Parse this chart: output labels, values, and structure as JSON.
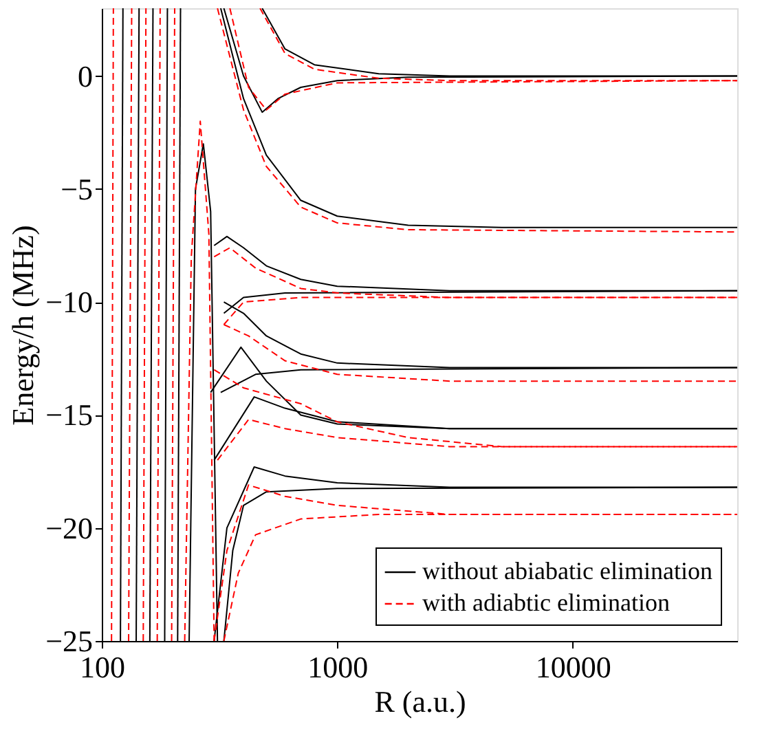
{
  "chart_data": {
    "type": "line",
    "xlabel": "R (a.u.)",
    "ylabel": "Energy/h (MHz)",
    "log": "x",
    "xlim": [
      100,
      50000
    ],
    "xticks": [
      100,
      1000,
      10000
    ],
    "ylim": [
      -25,
      3
    ],
    "yticks": [
      -25,
      -20,
      -15,
      -10,
      -5,
      0
    ],
    "grid": false,
    "legend": "bottom right",
    "marker": "none",
    "series": [
      {
        "name": "without abiabatic elimination",
        "color": "#000000",
        "line_style": "solid",
        "x": [
          480,
          600,
          800,
          1500,
          3000,
          50000
        ],
        "values": [
          3,
          1.2,
          0.5,
          0.1,
          0,
          0
        ]
      },
      {
        "color": "#000000",
        "line_style": "solid",
        "x": [
          330,
          400,
          480,
          560,
          700,
          1000,
          2000,
          50000
        ],
        "values": [
          3,
          0,
          -1.6,
          -1.0,
          -0.5,
          -0.2,
          -0.05,
          0
        ]
      },
      {
        "color": "#000000",
        "line_style": "solid",
        "x": [
          320,
          400,
          500,
          700,
          1000,
          2000,
          5000,
          50000
        ],
        "values": [
          3,
          -1,
          -3.5,
          -5.5,
          -6.2,
          -6.6,
          -6.7,
          -6.7
        ]
      },
      {
        "color": "#000000",
        "line_style": "solid",
        "x": [
          300,
          340,
          400,
          500,
          700,
          1000,
          3000,
          50000
        ],
        "values": [
          -7.5,
          -7.1,
          -7.6,
          -8.4,
          -9.0,
          -9.3,
          -9.5,
          -9.5
        ]
      },
      {
        "color": "#000000",
        "line_style": "solid",
        "x": [
          330,
          400,
          600,
          50000
        ],
        "values": [
          -10.5,
          -9.8,
          -9.6,
          -9.5
        ]
      },
      {
        "color": "#000000",
        "line_style": "solid",
        "x": [
          330,
          400,
          500,
          700,
          1000,
          3000,
          50000
        ],
        "values": [
          -10,
          -10.5,
          -11.5,
          -12.3,
          -12.7,
          -12.9,
          -12.9
        ]
      },
      {
        "color": "#000000",
        "line_style": "solid",
        "x": [
          320,
          450,
          700,
          50000
        ],
        "values": [
          -14,
          -13.2,
          -13.0,
          -12.9
        ]
      },
      {
        "color": "#000000",
        "line_style": "solid",
        "x": [
          300,
          444,
          600,
          1000,
          3000,
          50000
        ],
        "values": [
          -17,
          -14.2,
          -14.7,
          -15.3,
          -15.6,
          -15.6
        ]
      },
      {
        "color": "#000000",
        "line_style": "solid",
        "x": [
          290,
          390,
          500,
          700,
          1000,
          3000,
          50000
        ],
        "values": [
          -14,
          -12,
          -13.5,
          -15.0,
          -15.4,
          -15.6,
          -15.6
        ]
      },
      {
        "color": "#000000",
        "line_style": "solid",
        "x": [
          300,
          340,
          444,
          600,
          1000,
          3000,
          50000
        ],
        "values": [
          -25,
          -20,
          -17.3,
          -17.7,
          -18.0,
          -18.2,
          -18.2
        ]
      },
      {
        "color": "#000000",
        "line_style": "solid",
        "x": [
          330,
          360,
          400,
          500,
          1000,
          50000
        ],
        "values": [
          -25,
          -21,
          -19,
          -18.4,
          -18.25,
          -18.2
        ]
      },
      {
        "color": "#000000",
        "line_style": "solid",
        "x": [
          120,
          123
        ],
        "values": [
          -25,
          3
        ]
      },
      {
        "color": "#000000",
        "line_style": "solid",
        "x": [
          140,
          144
        ],
        "values": [
          -25,
          3
        ]
      },
      {
        "color": "#000000",
        "line_style": "solid",
        "x": [
          160,
          165
        ],
        "values": [
          -25,
          3
        ]
      },
      {
        "color": "#000000",
        "line_style": "solid",
        "x": [
          185,
          190
        ],
        "values": [
          -25,
          3
        ]
      },
      {
        "color": "#000000",
        "line_style": "solid",
        "x": [
          210,
          216
        ],
        "values": [
          -25,
          3
        ]
      },
      {
        "color": "#000000",
        "line_style": "solid",
        "x": [
          235,
          250,
          270,
          290,
          310
        ],
        "values": [
          -25,
          -5,
          -3,
          -6,
          -25
        ]
      },
      {
        "name": "with adiabtic elimination",
        "color": "#ff0000",
        "line_style": "dashed",
        "x": [
          470,
          600,
          800,
          1500,
          3000,
          50000
        ],
        "values": [
          3,
          1.0,
          0.3,
          -0.1,
          -0.2,
          -0.2
        ]
      },
      {
        "color": "#ff0000",
        "line_style": "dashed",
        "x": [
          350,
          420,
          500,
          600,
          1000,
          50000
        ],
        "values": [
          3,
          -0.5,
          -1.5,
          -0.8,
          -0.3,
          -0.2
        ]
      },
      {
        "color": "#ff0000",
        "line_style": "dashed",
        "x": [
          310,
          400,
          500,
          700,
          1000,
          2000,
          50000
        ],
        "values": [
          3,
          -1.5,
          -4,
          -5.8,
          -6.5,
          -6.8,
          -6.9
        ]
      },
      {
        "color": "#ff0000",
        "line_style": "dashed",
        "x": [
          300,
          350,
          450,
          700,
          1000,
          3000,
          50000
        ],
        "values": [
          -8,
          -7.6,
          -8.5,
          -9.4,
          -9.6,
          -9.8,
          -9.8
        ]
      },
      {
        "color": "#ff0000",
        "line_style": "dashed",
        "x": [
          330,
          400,
          700,
          50000
        ],
        "values": [
          -11,
          -10,
          -9.8,
          -9.8
        ]
      },
      {
        "color": "#ff0000",
        "line_style": "dashed",
        "x": [
          330,
          420,
          600,
          1000,
          3000,
          50000
        ],
        "values": [
          -11,
          -11.5,
          -12.6,
          -13.2,
          -13.5,
          -13.5
        ]
      },
      {
        "color": "#ff0000",
        "line_style": "dashed",
        "x": [
          300,
          400,
          700,
          1000,
          2000,
          5000,
          50000
        ],
        "values": [
          -13,
          -13.8,
          -14.5,
          -15.3,
          -16.0,
          -16.4,
          -16.4
        ]
      },
      {
        "color": "#ff0000",
        "line_style": "dashed",
        "x": [
          310,
          420,
          600,
          1000,
          3000,
          50000
        ],
        "values": [
          -17,
          -15.2,
          -15.6,
          -16.0,
          -16.4,
          -16.4
        ]
      },
      {
        "color": "#ff0000",
        "line_style": "dashed",
        "x": [
          300,
          340,
          420,
          600,
          1000,
          3000,
          50000
        ],
        "values": [
          -25,
          -21,
          -18.1,
          -18.6,
          -19.0,
          -19.4,
          -19.4
        ]
      },
      {
        "color": "#ff0000",
        "line_style": "dashed",
        "x": [
          330,
          380,
          450,
          700,
          1500,
          50000
        ],
        "values": [
          -25,
          -22,
          -20.3,
          -19.6,
          -19.4,
          -19.4
        ]
      },
      {
        "color": "#ff0000",
        "line_style": "dashed",
        "x": [
          110,
          112
        ],
        "values": [
          -25,
          3
        ]
      },
      {
        "color": "#ff0000",
        "line_style": "dashed",
        "x": [
          130,
          134
        ],
        "values": [
          -25,
          3
        ]
      },
      {
        "color": "#ff0000",
        "line_style": "dashed",
        "x": [
          150,
          154
        ],
        "values": [
          -25,
          3
        ]
      },
      {
        "color": "#ff0000",
        "line_style": "dashed",
        "x": [
          172,
          177
        ],
        "values": [
          -25,
          3
        ]
      },
      {
        "color": "#ff0000",
        "line_style": "dashed",
        "x": [
          198,
          204
        ],
        "values": [
          -25,
          3
        ]
      },
      {
        "color": "#ff0000",
        "line_style": "dashed",
        "x": [
          225,
          240,
          262,
          285,
          300
        ],
        "values": [
          -25,
          -8,
          -2,
          -7,
          -25
        ]
      }
    ]
  }
}
